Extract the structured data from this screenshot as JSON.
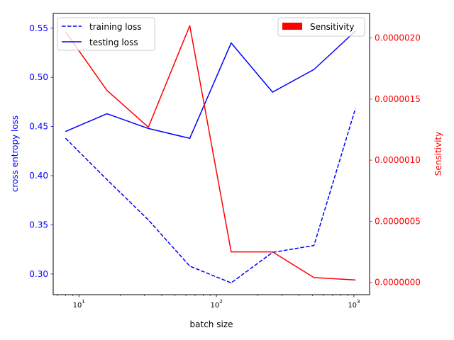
{
  "chart_data": {
    "type": "line",
    "xlabel": "batch size",
    "ylabel_left": "cross entropy loss",
    "ylabel_right": "Sensitivity",
    "x_scale": "log",
    "xlim": [
      6.5,
      1300
    ],
    "x_ticks": [
      {
        "value": 10,
        "label": "10",
        "exp": "1"
      },
      {
        "value": 100,
        "label": "10",
        "exp": "2"
      },
      {
        "value": 1000,
        "label": "10",
        "exp": "3"
      }
    ],
    "ylim_left": [
      0.279,
      0.565
    ],
    "y_ticks_left": [
      "0.30",
      "0.35",
      "0.40",
      "0.45",
      "0.50",
      "0.55"
    ],
    "ylim_right": [
      -1e-07,
      2.2e-06
    ],
    "y_ticks_right": [
      "0.0000000",
      "0.0000005",
      "0.0000010",
      "0.0000015",
      "0.0000020"
    ],
    "x": [
      8,
      16,
      32,
      64,
      128,
      256,
      512,
      1024
    ],
    "series": [
      {
        "name": "training loss",
        "axis": "left",
        "style": "dashed",
        "color": "#0000ff",
        "values": [
          0.438,
          0.396,
          0.355,
          0.308,
          0.291,
          0.322,
          0.329,
          0.468
        ]
      },
      {
        "name": "testing loss",
        "axis": "left",
        "style": "solid",
        "color": "#0000ff",
        "values": [
          0.445,
          0.463,
          0.448,
          0.438,
          0.535,
          0.485,
          0.508,
          0.547
        ]
      },
      {
        "name": "Sensitivity",
        "axis": "right",
        "style": "solid",
        "color": "#ff0000",
        "values": [
          2.05e-06,
          1.57e-06,
          1.27e-06,
          2.1e-06,
          2.5e-07,
          2.5e-07,
          4e-08,
          2e-08
        ]
      }
    ],
    "legend_left": {
      "position": "upper-left",
      "entries": [
        "training loss",
        "testing loss"
      ]
    },
    "legend_right": {
      "position": "upper-right",
      "entries": [
        "Sensitivity"
      ]
    },
    "colors": {
      "left_axis": "#0000ff",
      "right_axis": "#ff0000"
    },
    "grid": false
  }
}
